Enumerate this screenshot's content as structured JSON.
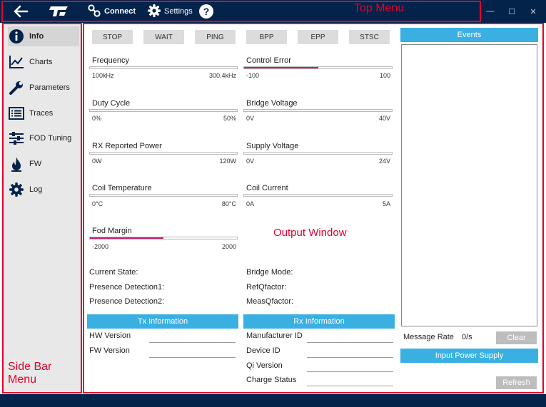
{
  "annotations": {
    "top_menu": "Top Menu",
    "side_bar_menu": "Side Bar Menu",
    "output_window": "Output Window"
  },
  "topbar": {
    "connect_label": "Connect",
    "settings_label": "Settings",
    "help_icon": "?"
  },
  "window_controls": {
    "minimize": "—",
    "maximize": "☐",
    "close": "✕"
  },
  "sidebar": {
    "items": [
      {
        "label": "Info",
        "icon": "info-icon",
        "active": true
      },
      {
        "label": "Charts",
        "icon": "chart-icon",
        "active": false
      },
      {
        "label": "Parameters",
        "icon": "wrench-icon",
        "active": false
      },
      {
        "label": "Traces",
        "icon": "list-icon",
        "active": false
      },
      {
        "label": "FOD Tuning",
        "icon": "sliders-icon",
        "active": false
      },
      {
        "label": "FW",
        "icon": "flame-icon",
        "active": false
      },
      {
        "label": "Log",
        "icon": "gear-icon",
        "active": false
      }
    ]
  },
  "commands": [
    "STOP",
    "WAIT",
    "PING",
    "BPP",
    "EPP",
    "STSC"
  ],
  "meters": [
    {
      "title": "Frequency",
      "min": "100kHz",
      "max": "300.4kHz",
      "level": 0
    },
    {
      "title": "Control Error",
      "min": "-100",
      "max": "100",
      "level": 0.5
    },
    {
      "title": "Duty Cycle",
      "min": "0%",
      "max": "50%",
      "level": 0
    },
    {
      "title": "Bridge Voltage",
      "min": "0V",
      "max": "40V",
      "level": 0
    },
    {
      "title": "RX Reported Power",
      "min": "0W",
      "max": "120W",
      "level": 0
    },
    {
      "title": "Supply Voltage",
      "min": "0V",
      "max": "24V",
      "level": 0
    },
    {
      "title": "Coil Temperature",
      "min": "0°C",
      "max": "80°C",
      "level": 0
    },
    {
      "title": "Coil Current",
      "min": "0A",
      "max": "5A",
      "level": 0
    },
    {
      "title": "Fod Margin",
      "min": "-2000",
      "max": "2000",
      "level": 0.5
    }
  ],
  "status": {
    "current_state": "Current State:",
    "presence_detection1": "Presence Detection1:",
    "presence_detection2": "Presence Detection2:",
    "bridge_mode": "Bridge Mode:",
    "ref_qfactor": "RefQfactor:",
    "meas_qfactor": "MeasQfactor:"
  },
  "tx_info": {
    "header": "Tx Information",
    "hw_version": "HW Version",
    "fw_version": "FW Version"
  },
  "rx_info": {
    "header": "Rx Information",
    "manufacturer_id": "Manufacturer ID",
    "device_id": "Device ID",
    "qi_version": "Qi Version",
    "charge_status": "Charge Status"
  },
  "events": {
    "header": "Events",
    "message_rate_label": "Message Rate",
    "message_rate_value": "0/s",
    "clear_label": "Clear",
    "input_power_supply": "Input Power Supply",
    "refresh_label": "Refresh"
  },
  "colors": {
    "topbar_bg": "#03234b",
    "accent_blue": "#3ab0e2",
    "meter_fill": "#cf1a6e",
    "annotation_red": "#e3002b"
  }
}
